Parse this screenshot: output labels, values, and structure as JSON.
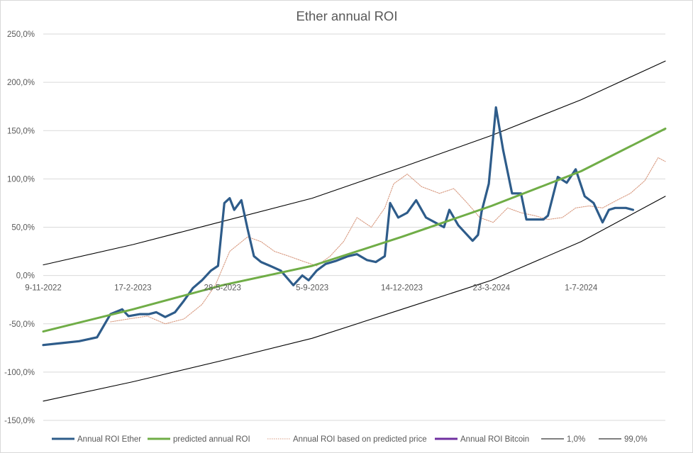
{
  "chart_data": {
    "type": "line",
    "title": "Ether annual ROI",
    "xlabel": "",
    "ylabel": "",
    "x_range": [
      "2022-11-09",
      "2024-10-03"
    ],
    "ylim": [
      -150,
      250
    ],
    "y_ticks": [
      -150,
      -100,
      -50,
      0,
      50,
      100,
      150,
      200,
      250
    ],
    "y_tick_labels": [
      "-150,0%",
      "-100,0%",
      "-50,0%",
      "0,0%",
      "50,0%",
      "100,0%",
      "150,0%",
      "200,0%",
      "250,0%"
    ],
    "x_ticks": [
      "2022-11-09",
      "2023-02-17",
      "2023-05-28",
      "2023-09-05",
      "2023-12-14",
      "2024-03-23",
      "2024-07-01"
    ],
    "x_tick_labels": [
      "9-11-2022",
      "17-2-2023",
      "28-5-2023",
      "5-9-2023",
      "14-12-2023",
      "23-3-2024",
      "1-7-2024"
    ],
    "grid": "horizontal",
    "legend_position": "bottom",
    "series": [
      {
        "name": "Annual ROI Ether",
        "color": "#2e5c8a",
        "x": [
          "2022-11-09",
          "2022-11-29",
          "2022-12-19",
          "2023-01-08",
          "2023-01-23",
          "2023-02-05",
          "2023-02-12",
          "2023-02-25",
          "2023-03-07",
          "2023-03-15",
          "2023-03-25",
          "2023-04-05",
          "2023-04-15",
          "2023-04-25",
          "2023-05-05",
          "2023-05-15",
          "2023-05-23",
          "2023-05-30",
          "2023-06-05",
          "2023-06-10",
          "2023-06-18",
          "2023-06-25",
          "2023-07-02",
          "2023-07-10",
          "2023-07-20",
          "2023-08-01",
          "2023-08-15",
          "2023-08-25",
          "2023-09-01",
          "2023-09-10",
          "2023-09-20",
          "2023-10-01",
          "2023-10-15",
          "2023-10-25",
          "2023-11-05",
          "2023-11-15",
          "2023-11-25",
          "2023-12-01",
          "2023-12-10",
          "2023-12-20",
          "2023-12-30",
          "2024-01-10",
          "2024-01-20",
          "2024-01-30",
          "2024-02-05",
          "2024-02-15",
          "2024-02-25",
          "2024-03-02",
          "2024-03-08",
          "2024-03-12",
          "2024-03-20",
          "2024-03-28",
          "2024-04-05",
          "2024-04-15",
          "2024-04-25",
          "2024-05-01",
          "2024-05-10",
          "2024-05-20",
          "2024-05-25",
          "2024-06-05",
          "2024-06-15",
          "2024-06-25",
          "2024-07-05",
          "2024-07-15",
          "2024-07-25",
          "2024-08-01",
          "2024-08-08",
          "2024-08-20",
          "2024-08-28"
        ],
        "values": [
          -72,
          -70,
          -68,
          -64,
          -40,
          -35,
          -42,
          -40,
          -40,
          -38,
          -43,
          -38,
          -26,
          -13,
          -5,
          5,
          10,
          75,
          80,
          68,
          78,
          48,
          20,
          14,
          10,
          5,
          -10,
          0,
          -5,
          5,
          12,
          15,
          20,
          22,
          16,
          14,
          20,
          75,
          60,
          65,
          78,
          60,
          55,
          50,
          68,
          52,
          42,
          36,
          42,
          66,
          95,
          174,
          130,
          85,
          85,
          58,
          58,
          58,
          62,
          102,
          96,
          110,
          82,
          75,
          55,
          68,
          70,
          70,
          68
        ]
      },
      {
        "name": "predicted annual ROI",
        "color": "#70ad47",
        "x": [
          "2022-11-09",
          "2023-02-17",
          "2023-05-28",
          "2023-09-05",
          "2023-12-14",
          "2024-03-23",
          "2024-07-01",
          "2024-10-03"
        ],
        "values": [
          -58,
          -35,
          -10,
          10,
          40,
          72,
          108,
          152
        ]
      },
      {
        "name": "Annual ROI based on predicted price",
        "color": "#d89a80",
        "x": [
          "2023-01-23",
          "2023-02-12",
          "2023-03-05",
          "2023-03-25",
          "2023-04-15",
          "2023-05-05",
          "2023-05-20",
          "2023-06-05",
          "2023-06-25",
          "2023-07-10",
          "2023-07-25",
          "2023-08-10",
          "2023-08-25",
          "2023-09-10",
          "2023-09-25",
          "2023-10-10",
          "2023-10-25",
          "2023-11-10",
          "2023-11-25",
          "2023-12-05",
          "2023-12-20",
          "2024-01-05",
          "2024-01-25",
          "2024-02-10",
          "2024-02-25",
          "2024-03-10",
          "2024-03-25",
          "2024-04-10",
          "2024-04-25",
          "2024-05-10",
          "2024-05-25",
          "2024-06-10",
          "2024-06-25",
          "2024-07-10",
          "2024-07-25",
          "2024-08-10",
          "2024-08-25",
          "2024-09-10",
          "2024-09-25",
          "2024-10-03"
        ],
        "values": [
          -48,
          -45,
          -42,
          -50,
          -45,
          -30,
          -10,
          25,
          40,
          35,
          25,
          20,
          15,
          10,
          20,
          35,
          60,
          50,
          70,
          95,
          105,
          92,
          85,
          90,
          75,
          60,
          55,
          70,
          65,
          62,
          58,
          60,
          70,
          72,
          70,
          78,
          85,
          98,
          122,
          118
        ]
      },
      {
        "name": "Annual ROI Bitcoin",
        "color": "#7030a0",
        "x": [],
        "values": []
      },
      {
        "name": "1,0%",
        "color": "#000000",
        "x": [
          "2022-11-09",
          "2023-02-17",
          "2023-05-28",
          "2023-09-05",
          "2023-12-14",
          "2024-03-23",
          "2024-07-01",
          "2024-10-03"
        ],
        "values": [
          -130,
          -110,
          -88,
          -65,
          -35,
          -5,
          35,
          82
        ]
      },
      {
        "name": "99,0%",
        "color": "#000000",
        "x": [
          "2022-11-09",
          "2023-02-17",
          "2023-05-28",
          "2023-09-05",
          "2023-12-14",
          "2024-03-23",
          "2024-07-01",
          "2024-10-03"
        ],
        "values": [
          11,
          32,
          56,
          80,
          112,
          145,
          182,
          222
        ]
      }
    ]
  }
}
